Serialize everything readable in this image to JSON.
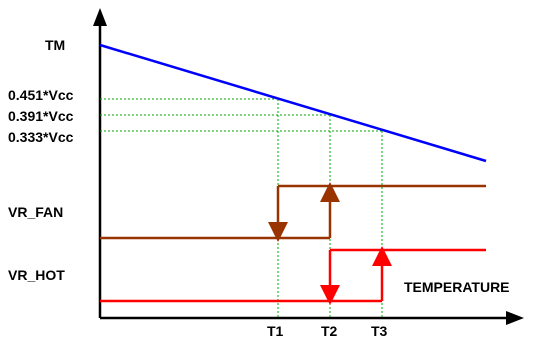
{
  "diagram": {
    "labels": {
      "tm": "TM",
      "v1": "0.451*Vcc",
      "v2": "0.391*Vcc",
      "v3": "0.333*Vcc",
      "vr_fan": "VR_FAN",
      "vr_hot": "VR_HOT",
      "temperature": "TEMPERATURE",
      "t1": "T1",
      "t2": "T2",
      "t3": "T3"
    },
    "colors": {
      "axis": "#000000",
      "tm_line": "#0000ff",
      "vr_fan": "#993300",
      "vr_hot": "#ff0000",
      "guide": "#00aa00"
    }
  }
}
